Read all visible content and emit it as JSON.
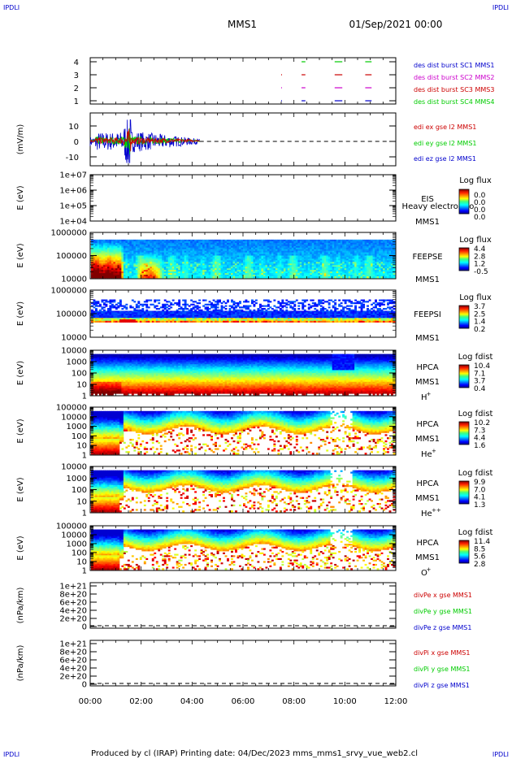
{
  "header": {
    "corner_left": "IPDLI",
    "corner_right": "IPDLI",
    "title": "MMS1",
    "datetime": "01/Sep/2021 00:00",
    "footer": "Produced by cl (IRAP)    Printing date: 04/Dec/2023    mms_mms1_srvy_vue_web2.cl"
  },
  "x_axis": {
    "ticks": [
      "00:00",
      "02:00",
      "04:00",
      "06:00",
      "08:00",
      "10:00",
      "12:00"
    ],
    "range_hours": [
      0,
      12
    ]
  },
  "colors": {
    "blue": "#0000cc",
    "magenta": "#cc00cc",
    "red": "#cc0000",
    "green": "#00cc00"
  },
  "chart_data": [
    {
      "type": "scatter",
      "panel": "burst-coverage",
      "yticks": [
        "1",
        "2",
        "3",
        "4"
      ],
      "ylim": [
        0.5,
        4.5
      ],
      "series": [
        {
          "name": "des dist burst SC1 MMS1",
          "color": "#0000cc",
          "y": 1,
          "segments_hours": [
            [
              7.5,
              7.52
            ],
            [
              8.3,
              8.45
            ],
            [
              9.6,
              9.9
            ],
            [
              10.8,
              11.05
            ]
          ]
        },
        {
          "name": "des dist burst SC2 MMS2",
          "color": "#cc00cc",
          "y": 2,
          "segments_hours": [
            [
              7.5,
              7.52
            ],
            [
              8.3,
              8.45
            ],
            [
              9.6,
              9.9
            ],
            [
              10.8,
              11.05
            ]
          ]
        },
        {
          "name": "des dist burst SC3 MMS3",
          "color": "#cc0000",
          "y": 3,
          "segments_hours": [
            [
              7.5,
              7.52
            ],
            [
              8.3,
              8.45
            ],
            [
              9.6,
              9.9
            ],
            [
              10.8,
              11.05
            ]
          ]
        },
        {
          "name": "des dist burst SC4 MMS4",
          "color": "#00cc00",
          "y": 4,
          "segments_hours": [
            [
              8.3,
              8.45
            ],
            [
              9.6,
              9.9
            ],
            [
              10.8,
              11.05
            ]
          ]
        }
      ]
    },
    {
      "type": "line",
      "panel": "edi-efield",
      "ylabel": "(mV/m)",
      "yticks": [
        "-10",
        "0",
        "10"
      ],
      "ylim": [
        -15,
        15
      ],
      "series": [
        {
          "name": "edi ex gse l2 MMS1",
          "color": "#cc0000"
        },
        {
          "name": "edi ey gse l2 MMS1",
          "color": "#00cc00"
        },
        {
          "name": "edi ez gse l2 MMS1",
          "color": "#0000cc"
        }
      ],
      "data_hours": [
        0,
        4.3
      ]
    },
    {
      "type": "heatmap",
      "panel": "eis",
      "ylabel": "E (eV)",
      "yticks": [
        "1e+07",
        "1e+06",
        "1e+05",
        "1e+04"
      ],
      "label1": "EIS",
      "label2": "Heavy electron to",
      "label3": "MMS1",
      "cbar_title": "Log flux",
      "cbar_values": [
        "0.0",
        "0.0",
        "0.0",
        "0.0"
      ]
    },
    {
      "type": "heatmap",
      "panel": "feepse",
      "ylabel": "E (eV)",
      "yticks": [
        "1000000",
        "100000",
        "10000"
      ],
      "label1": "FEEPSE",
      "label3": "MMS1",
      "cbar_title": "Log flux",
      "cbar_values": [
        "4.4",
        "2.8",
        "1.2",
        "-0.5"
      ]
    },
    {
      "type": "heatmap",
      "panel": "feepsi",
      "ylabel": "E (eV)",
      "yticks": [
        "1000000",
        "100000",
        "10000"
      ],
      "label1": "FEEPSI",
      "label3": "MMS1",
      "cbar_title": "Log flux",
      "cbar_values": [
        "3.7",
        "2.5",
        "1.4",
        "0.2"
      ]
    },
    {
      "type": "heatmap",
      "panel": "hpca-h",
      "ylabel": "E (eV)",
      "yticks": [
        "10000",
        "1000",
        "100",
        "10",
        "1"
      ],
      "label1": "HPCA",
      "label2": "MMS1",
      "species": "H",
      "charge": "+",
      "cbar_title": "Log fdist",
      "cbar_values": [
        "10.4",
        "7.1",
        "3.7",
        "0.4"
      ]
    },
    {
      "type": "heatmap",
      "panel": "hpca-he",
      "ylabel": "E (eV)",
      "yticks": [
        "100000",
        "10000",
        "1000",
        "100",
        "10",
        "1"
      ],
      "label1": "HPCA",
      "label2": "MMS1",
      "species": "He",
      "charge": "+",
      "cbar_title": "Log fdist",
      "cbar_values": [
        "10.2",
        "7.3",
        "4.4",
        "1.6"
      ]
    },
    {
      "type": "heatmap",
      "panel": "hpca-he2",
      "ylabel": "E (eV)",
      "yticks": [
        "10000",
        "1000",
        "100",
        "10",
        "1"
      ],
      "label1": "HPCA",
      "label2": "MMS1",
      "species": "He",
      "charge": "++",
      "cbar_title": "Log fdist",
      "cbar_values": [
        "9.9",
        "7.0",
        "4.1",
        "1.3"
      ]
    },
    {
      "type": "heatmap",
      "panel": "hpca-o",
      "ylabel": "E (eV)",
      "yticks": [
        "100000",
        "10000",
        "1000",
        "100",
        "10",
        "1"
      ],
      "label1": "HPCA",
      "label2": "MMS1",
      "species": "O",
      "charge": "+",
      "cbar_title": "Log fdist",
      "cbar_values": [
        "11.4",
        "8.5",
        "5.6",
        "2.8"
      ]
    },
    {
      "type": "line",
      "panel": "divpe",
      "ylabel": "(nPa/km)",
      "yticks": [
        "1e+21",
        "8e+20",
        "6e+20",
        "4e+20",
        "2e+20",
        "0"
      ],
      "ylim": [
        0,
        1e+21
      ],
      "series": [
        {
          "name": "divPe x gse MMS1",
          "color": "#cc0000"
        },
        {
          "name": "divPe y gse MMS1",
          "color": "#00cc00"
        },
        {
          "name": "divPe z gse MMS1",
          "color": "#0000cc"
        }
      ]
    },
    {
      "type": "line",
      "panel": "divpi",
      "ylabel": "(nPa/km)",
      "yticks": [
        "1e+21",
        "8e+20",
        "6e+20",
        "4e+20",
        "2e+20",
        "0"
      ],
      "ylim": [
        0,
        1e+21
      ],
      "series": [
        {
          "name": "divPi x gse MMS1",
          "color": "#cc0000"
        },
        {
          "name": "divPi y gse MMS1",
          "color": "#00cc00"
        },
        {
          "name": "divPi z gse MMS1",
          "color": "#0000cc"
        }
      ]
    }
  ]
}
